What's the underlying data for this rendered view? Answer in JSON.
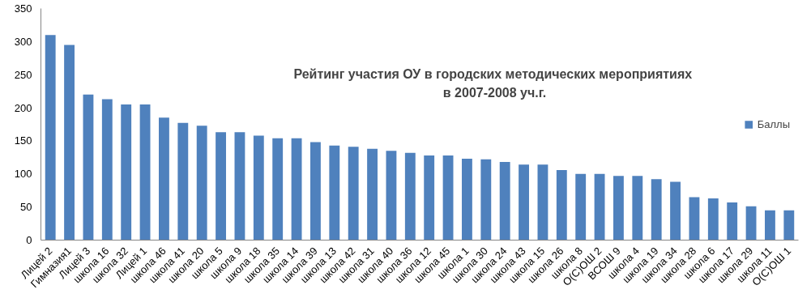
{
  "chart_data": {
    "type": "bar",
    "title": "Рейтинг  участия ОУ в городских методических мероприятиях\nв 2007-2008 уч.г.",
    "categories": [
      "Лицей 2",
      "Гимназия1",
      "Лицей 3",
      "школа 16",
      "школа 32",
      "Лицей 1",
      "школа 46",
      "школа 41",
      "школа 20",
      "школа 5",
      "школа 9",
      "школа 18",
      "школа 35",
      "школа 14",
      "школа 39",
      "школа 13",
      "школа 42",
      "школа 31",
      "школа 40",
      "школа 36",
      "школа 12",
      "школа 45",
      "школа 1",
      "школа 30",
      "школа 24",
      "школа 43",
      "школа 15",
      "школа 26",
      "школа 8",
      "О(С)ОШ 2",
      "ВСОШ 9",
      "школа 4",
      "школа 19",
      "школа 34",
      "школа 28",
      "школа 6",
      "школа 17",
      "школа 29",
      "школа 11",
      "О(С)ОШ 1"
    ],
    "series": [
      {
        "name": "Баллы",
        "color": "#4f81bd",
        "values": [
          310,
          295,
          220,
          213,
          205,
          205,
          185,
          177,
          173,
          163,
          163,
          158,
          154,
          154,
          148,
          143,
          141,
          138,
          135,
          132,
          128,
          128,
          123,
          122,
          118,
          114,
          114,
          106,
          100,
          100,
          97,
          97,
          92,
          88,
          65,
          63,
          57,
          51,
          45,
          45
        ]
      }
    ],
    "ylim": [
      0,
      350
    ],
    "yticks": [
      0,
      50,
      100,
      150,
      200,
      250,
      300,
      350
    ],
    "grid": false,
    "legend": "right"
  }
}
